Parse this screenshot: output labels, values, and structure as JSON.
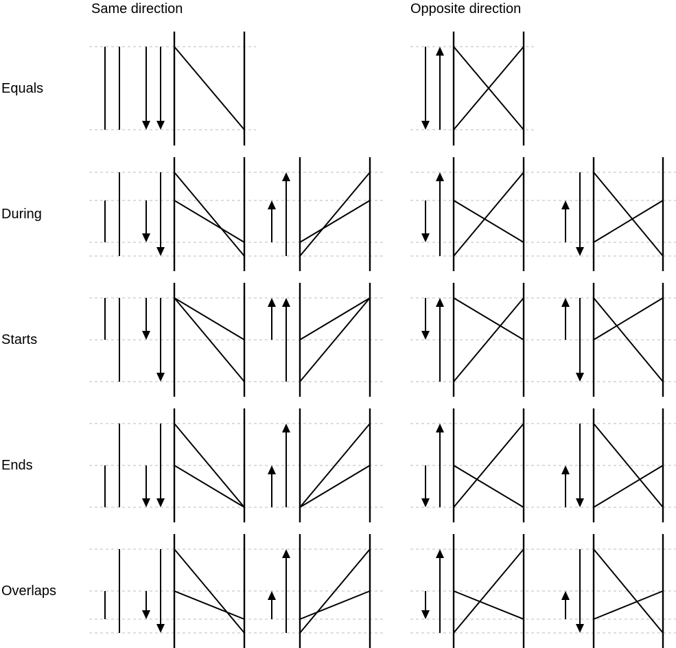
{
  "column_titles": {
    "same": "Same direction",
    "opposite": "Opposite direction"
  },
  "rows": [
    {
      "id": "equals",
      "label": "Equals"
    },
    {
      "id": "during",
      "label": "During"
    },
    {
      "id": "starts",
      "label": "Starts"
    },
    {
      "id": "ends",
      "label": "Ends"
    },
    {
      "id": "overlaps",
      "label": "Overlaps"
    }
  ],
  "colors": {
    "line": "#000000",
    "guide": "#bbbbbb",
    "background": "#ffffff"
  }
}
